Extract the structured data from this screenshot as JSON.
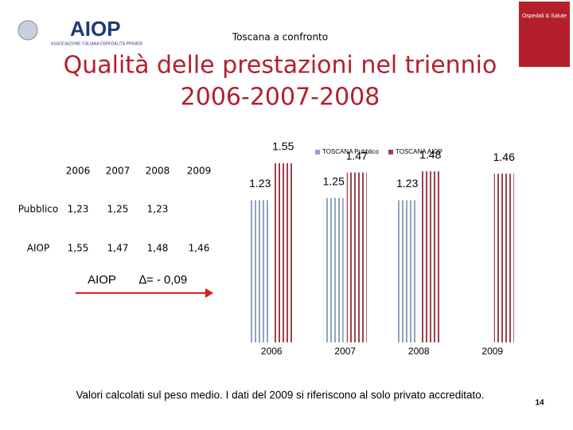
{
  "header": {
    "logo": "AIOP",
    "logo_subtitle": "ASSOCIAZIONE ITALIANA OSPEDALITÀ PRIVATA",
    "subtitle": "Toscana a confronto",
    "title_lines": [
      "Qualità delle prestazioni nel triennio",
      "2006-2007-2008"
    ],
    "cover_title": "Ospedali & Salute"
  },
  "table": {
    "columns": [
      "2006",
      "2007",
      "2008",
      "2009"
    ],
    "rows": [
      {
        "label": "Pubblico",
        "cells": [
          "1,23",
          "1,25",
          "1,23"
        ]
      },
      {
        "label": "AIOP",
        "cells": [
          "1,55",
          "1,47",
          "1,48",
          "1,46"
        ]
      }
    ]
  },
  "annotation": {
    "label": "AIOP",
    "delta": "∆= - 0,09"
  },
  "chart_data": {
    "type": "bar",
    "categories": [
      "2006",
      "2007",
      "2008",
      "2009"
    ],
    "series": [
      {
        "name": "TOSCANA Pubblico",
        "color": "#8fa3c0",
        "values": [
          1.23,
          1.25,
          1.23,
          null
        ]
      },
      {
        "name": "TOSCANA AIOP",
        "color": "#a0404a",
        "values": [
          1.55,
          1.47,
          1.48,
          1.46
        ]
      }
    ]
  },
  "footnote": "Valori calcolati sul peso medio. I dati del 2009 si riferiscono al solo privato accreditato.",
  "page_number": "14"
}
